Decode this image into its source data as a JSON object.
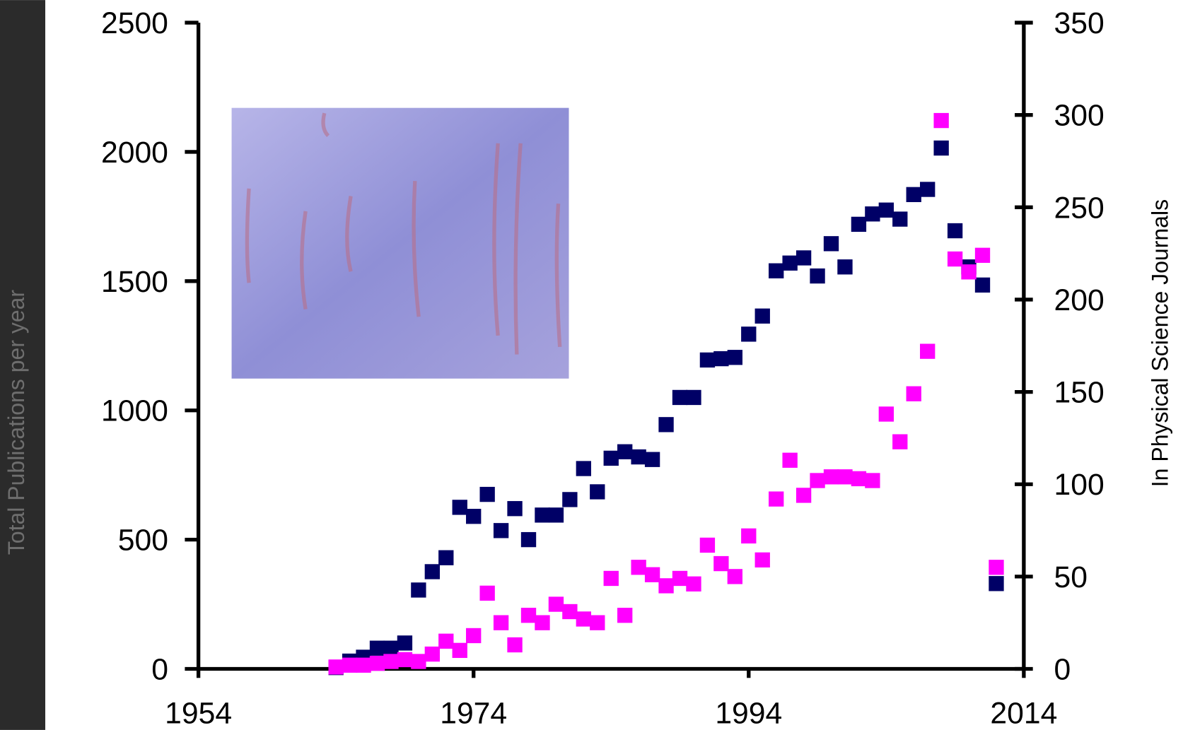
{
  "chart_data": {
    "type": "scatter",
    "ylabel": "Total Publications per year",
    "y2label": "In Physical Science Journals",
    "x": [
      1964,
      1965,
      1966,
      1967,
      1968,
      1969,
      1970,
      1971,
      1972,
      1973,
      1974,
      1975,
      1976,
      1977,
      1978,
      1979,
      1980,
      1981,
      1982,
      1983,
      1984,
      1985,
      1986,
      1987,
      1988,
      1989,
      1990,
      1991,
      1992,
      1993,
      1994,
      1995,
      1996,
      1997,
      1998,
      1999,
      2000,
      2001,
      2002,
      2003,
      2004,
      2005,
      2006,
      2007,
      2008,
      2009,
      2010,
      2011,
      2012
    ],
    "series": [
      {
        "color": "#000066",
        "values": [
          5,
          30,
          45,
          80,
          80,
          100,
          305,
          376,
          430,
          625,
          590,
          675,
          535,
          620,
          500,
          595,
          595,
          655,
          775,
          685,
          815,
          840,
          820,
          810,
          945,
          1050,
          1050,
          1195,
          1200,
          1205,
          1295,
          1365,
          1540,
          1570,
          1590,
          1520,
          1645,
          1555,
          1720,
          1760,
          1775,
          1740,
          1835,
          1855,
          2015,
          1695,
          1555,
          1485,
          330
        ]
      },
      {
        "color": "#ff00ff",
        "axis": "y2",
        "values": [
          1,
          2,
          2,
          3,
          4,
          5,
          4,
          8,
          15,
          10,
          18,
          41,
          25,
          13,
          29,
          25,
          35,
          31,
          27,
          25,
          49,
          29,
          55,
          51,
          45,
          49,
          46,
          67,
          57,
          50,
          72,
          59,
          92,
          113,
          94,
          102,
          104,
          104,
          103,
          102,
          138,
          123,
          149,
          172,
          297,
          222,
          215,
          224,
          55
        ]
      }
    ],
    "xlim": [
      1954,
      2014
    ],
    "xticks": [
      1954,
      1974,
      1994,
      2014
    ],
    "ylim": [
      0,
      2500
    ],
    "yticks": [
      0,
      500,
      1000,
      1500,
      2000,
      2500
    ],
    "y2lim": [
      0,
      350
    ],
    "y2ticks": [
      0,
      50,
      100,
      150,
      200,
      250,
      300,
      350
    ],
    "grid": false
  }
}
